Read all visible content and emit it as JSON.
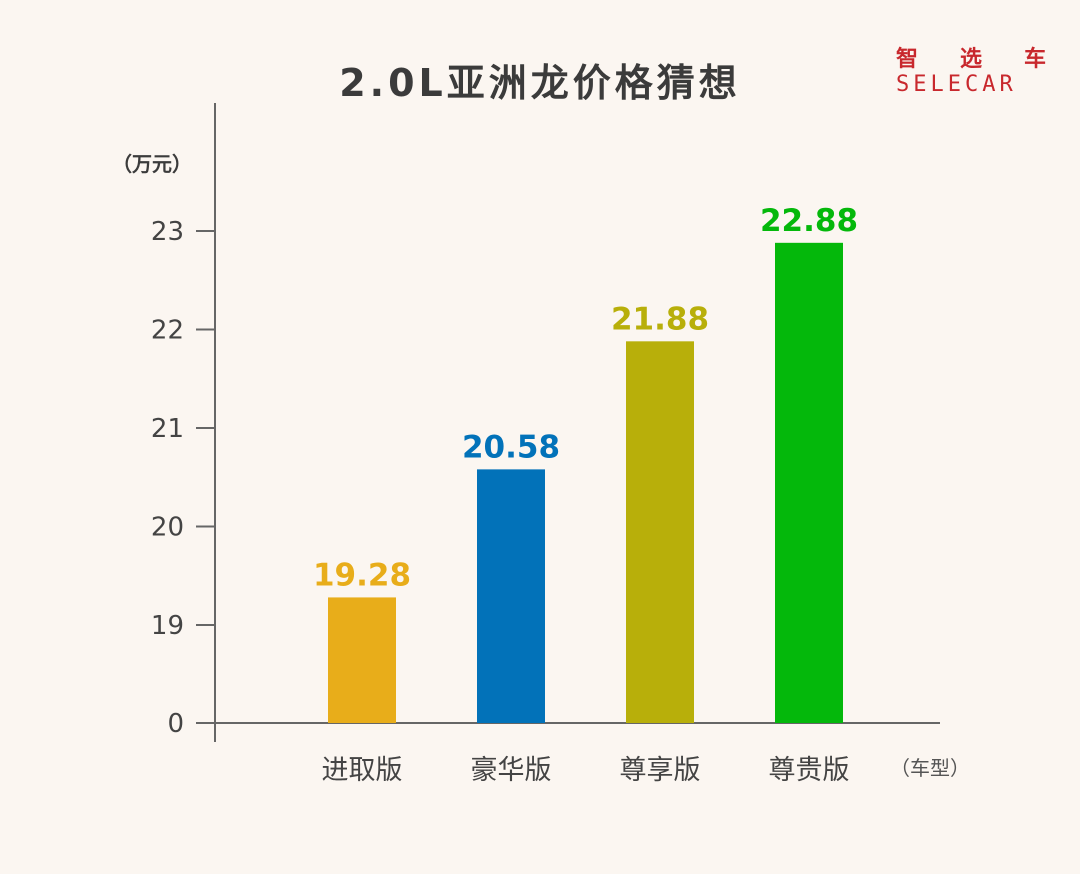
{
  "title": "2.0L亚洲龙价格猜想",
  "logo": {
    "cn": [
      "智",
      "选",
      "车"
    ],
    "en": "SELECAR"
  },
  "unit_y": "（万元）",
  "unit_x": "（车型）",
  "chart_data": {
    "type": "bar",
    "categories": [
      "进取版",
      "豪华版",
      "尊享版",
      "尊贵版"
    ],
    "values": [
      19.28,
      20.58,
      21.88,
      22.88
    ],
    "value_labels": [
      "19.28",
      "20.58",
      "21.88",
      "22.88"
    ],
    "colors": [
      "#e8ad1a",
      "#0272b9",
      "#b8af0a",
      "#04b80b"
    ],
    "y_ticks": [
      "0",
      "19",
      "20",
      "21",
      "22",
      "23"
    ],
    "y_axis": "broken scale: 0 at origin, then 19 to 23",
    "grid": false,
    "title": "2.0L亚洲龙价格猜想"
  }
}
